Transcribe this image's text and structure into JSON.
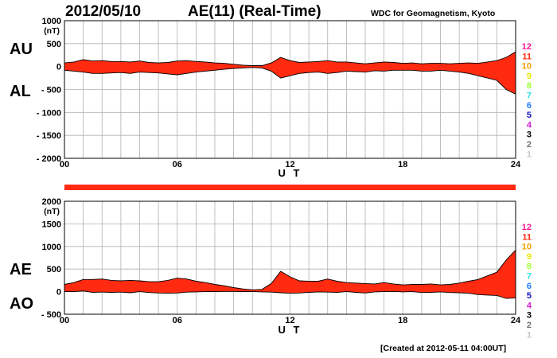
{
  "header": {
    "date": "2012/05/10",
    "index_title": "AE(11) (Real-Time)",
    "source": "WDC for Geomagnetism, Kyoto",
    "created": "[Created at 2012-05-11 04:00UT]"
  },
  "colors": {
    "fill": "#ff2a10",
    "line": "#000000",
    "grid": "#b0b0b0",
    "station_bar": "#ff2a10"
  },
  "station_count_legend": [
    {
      "label": "12",
      "color": "#ff1493"
    },
    {
      "label": "11",
      "color": "#ff2a10"
    },
    {
      "label": "10",
      "color": "#f4a000"
    },
    {
      "label": "9",
      "color": "#e8e800"
    },
    {
      "label": "8",
      "color": "#a0ff30"
    },
    {
      "label": "7",
      "color": "#30e0e0"
    },
    {
      "label": "6",
      "color": "#1e78ff"
    },
    {
      "label": "5",
      "color": "#1010c0"
    },
    {
      "label": "4",
      "color": "#d020d0"
    },
    {
      "label": "3",
      "color": "#000000"
    },
    {
      "label": "2",
      "color": "#707070"
    },
    {
      "label": "1",
      "color": "#c8c8c8"
    }
  ],
  "chart_data": [
    {
      "type": "area",
      "title": "AU / AL",
      "series_labels": [
        "AU",
        "AL"
      ],
      "xlabel": "U T",
      "ylabel": "(nT)",
      "xlim": [
        0,
        24
      ],
      "ylim": [
        -2000,
        1000
      ],
      "x_ticks": [
        "00",
        "06",
        "12",
        "18",
        "24"
      ],
      "y_ticks": [
        "1000",
        "500",
        "0",
        "- 500",
        "- 1000",
        "- 1500",
        "- 2000"
      ],
      "y_tick_values": [
        1000,
        500,
        0,
        -500,
        -1000,
        -1500,
        -2000
      ],
      "x": [
        0,
        0.5,
        1,
        1.5,
        2,
        2.5,
        3,
        3.5,
        4,
        4.5,
        5,
        5.5,
        6,
        6.5,
        7,
        7.5,
        8,
        8.5,
        9,
        9.5,
        10,
        10.5,
        11,
        11.5,
        12,
        12.5,
        13,
        13.5,
        14,
        14.5,
        15,
        15.5,
        16,
        16.5,
        17,
        17.5,
        18,
        18.5,
        19,
        19.5,
        20,
        20.5,
        21,
        21.5,
        22,
        22.5,
        23,
        23.5,
        24
      ],
      "series": [
        {
          "name": "AU",
          "values": [
            80,
            100,
            150,
            120,
            130,
            110,
            110,
            100,
            120,
            90,
            80,
            90,
            120,
            130,
            110,
            100,
            80,
            70,
            50,
            30,
            20,
            20,
            80,
            200,
            130,
            90,
            100,
            110,
            130,
            100,
            100,
            80,
            60,
            80,
            100,
            90,
            70,
            80,
            60,
            70,
            70,
            60,
            70,
            80,
            70,
            100,
            130,
            200,
            320
          ]
        },
        {
          "name": "AL",
          "values": [
            -80,
            -100,
            -120,
            -150,
            -150,
            -140,
            -130,
            -150,
            -120,
            -130,
            -140,
            -160,
            -180,
            -150,
            -120,
            -100,
            -80,
            -60,
            -40,
            -30,
            -20,
            -30,
            -100,
            -250,
            -200,
            -150,
            -130,
            -120,
            -150,
            -130,
            -100,
            -110,
            -120,
            -90,
            -100,
            -80,
            -80,
            -80,
            -100,
            -100,
            -80,
            -100,
            -120,
            -150,
            -200,
            -250,
            -300,
            -500,
            -600
          ]
        }
      ]
    },
    {
      "type": "area",
      "title": "AE / AO",
      "series_labels": [
        "AE",
        "AO"
      ],
      "xlabel": "U T",
      "ylabel": "(nT)",
      "xlim": [
        0,
        24
      ],
      "ylim": [
        -500,
        2000
      ],
      "x_ticks": [
        "00",
        "06",
        "12",
        "18",
        "24"
      ],
      "y_ticks": [
        "2000",
        "1500",
        "1000",
        "500",
        "0",
        "- 500"
      ],
      "y_tick_values": [
        2000,
        1500,
        1000,
        500,
        0,
        -500
      ],
      "x": [
        0,
        0.5,
        1,
        1.5,
        2,
        2.5,
        3,
        3.5,
        4,
        4.5,
        5,
        5.5,
        6,
        6.5,
        7,
        7.5,
        8,
        8.5,
        9,
        9.5,
        10,
        10.5,
        11,
        11.5,
        12,
        12.5,
        13,
        13.5,
        14,
        14.5,
        15,
        15.5,
        16,
        16.5,
        17,
        17.5,
        18,
        18.5,
        19,
        19.5,
        20,
        20.5,
        21,
        21.5,
        22,
        22.5,
        23,
        23.5,
        24
      ],
      "series": [
        {
          "name": "AE",
          "values": [
            160,
            200,
            270,
            270,
            280,
            250,
            240,
            250,
            240,
            220,
            220,
            250,
            300,
            280,
            230,
            200,
            160,
            130,
            90,
            60,
            40,
            50,
            180,
            450,
            330,
            240,
            230,
            230,
            280,
            230,
            200,
            190,
            180,
            170,
            200,
            170,
            150,
            160,
            160,
            170,
            150,
            160,
            190,
            230,
            270,
            350,
            430,
            700,
            920
          ]
        },
        {
          "name": "AO",
          "values": [
            0,
            0,
            15,
            -15,
            -10,
            -15,
            -10,
            -25,
            0,
            -20,
            -30,
            -35,
            -30,
            -10,
            -5,
            0,
            0,
            5,
            5,
            0,
            0,
            -5,
            -10,
            -25,
            -35,
            -30,
            -15,
            -5,
            -10,
            -15,
            0,
            -15,
            -30,
            -5,
            0,
            5,
            -5,
            0,
            -20,
            -15,
            -5,
            -20,
            -25,
            -35,
            -65,
            -75,
            -85,
            -150,
            -140
          ]
        }
      ]
    }
  ]
}
